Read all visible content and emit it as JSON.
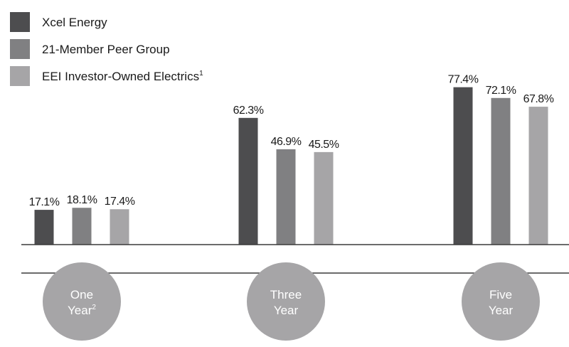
{
  "colors": {
    "background": "#ffffff",
    "axis_line": "#3a3a3a",
    "circle_fill": "#a6a5a7",
    "circle_text": "#ffffff",
    "value_text": "#1a1a1a",
    "legend_text": "#1a1a1a"
  },
  "chart_data": {
    "type": "bar",
    "categories": [
      "One Year",
      "Three Year",
      "Five Year"
    ],
    "category_labels": [
      {
        "line1": "One",
        "line2": "Year",
        "sup": "2"
      },
      {
        "line1": "Three",
        "line2": "Year",
        "sup": ""
      },
      {
        "line1": "Five",
        "line2": "Year",
        "sup": ""
      }
    ],
    "series": [
      {
        "name": "Xcel Energy",
        "sup": "",
        "color": "#4d4d4f",
        "values": [
          17.1,
          62.3,
          77.4
        ]
      },
      {
        "name": "21-Member Peer Group",
        "sup": "",
        "color": "#808082",
        "values": [
          18.1,
          46.9,
          72.1
        ]
      },
      {
        "name": "EEI Investor-Owned Electrics",
        "sup": "1",
        "color": "#a6a5a7",
        "values": [
          17.4,
          45.5,
          67.8
        ]
      }
    ],
    "value_labels": [
      [
        "17.1%",
        "62.3%",
        "77.4%"
      ],
      [
        "18.1%",
        "46.9%",
        "72.1%"
      ],
      [
        "17.4%",
        "45.5%",
        "67.8%"
      ]
    ],
    "ylim": [
      0,
      100
    ],
    "grid": false,
    "legend_position": "top-left",
    "title": "",
    "xlabel": "",
    "ylabel": ""
  }
}
